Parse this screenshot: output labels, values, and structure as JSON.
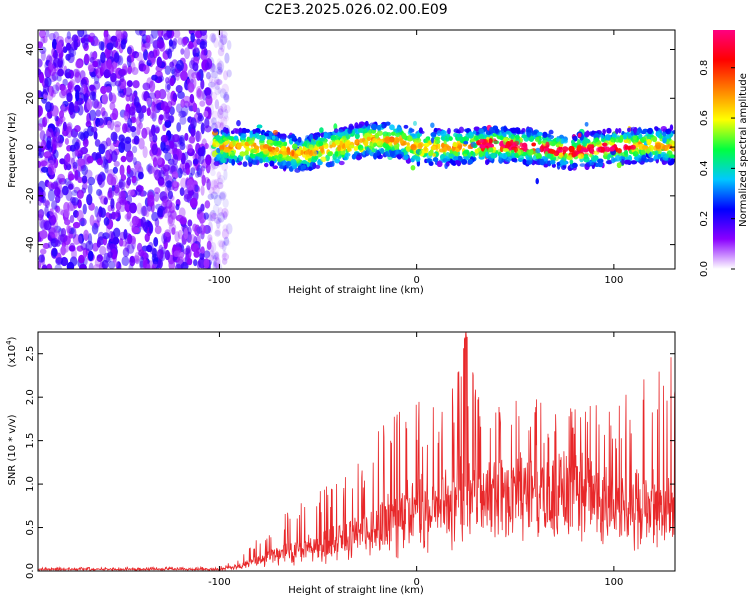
{
  "title": "C2E3.2025.026.02.00.E09",
  "chart_data": [
    {
      "type": "heatmap",
      "title": "C2E3.2025.026.02.00.E09",
      "xlabel": "Height of straight line (km)",
      "ylabel": "Frequency (Hz)",
      "xlim": [
        -192,
        131
      ],
      "ylim": [
        -50,
        48
      ],
      "x_ticks": [
        -100,
        0,
        100
      ],
      "y_ticks": [
        -40,
        -20,
        0,
        20,
        40
      ],
      "colorbar": {
        "label": "Normalized spectral amplitude",
        "range": [
          0,
          0.95
        ],
        "ticks": [
          "0.0",
          "0.2",
          "0.4",
          "0.6",
          "0.8"
        ],
        "colormap": [
          "#ffffff",
          "#8a00ff",
          "#0000ff",
          "#00c8ff",
          "#00ff40",
          "#ffff00",
          "#ff8000",
          "#ff0000",
          "#ff0080"
        ]
      },
      "description_features": {
        "noise_region_x": [
          -192,
          -95
        ],
        "signal_band_x": [
          -103,
          131
        ],
        "signal_center_frequency": [
          [
            -100,
            0
          ],
          [
            -80,
            0
          ],
          [
            -60,
            -3
          ],
          [
            -40,
            0
          ],
          [
            -25,
            3
          ],
          [
            -10,
            3
          ],
          [
            0,
            0
          ],
          [
            20,
            0
          ],
          [
            40,
            1
          ],
          [
            60,
            0
          ],
          [
            80,
            -2
          ],
          [
            100,
            0
          ],
          [
            120,
            1
          ],
          [
            131,
            0
          ]
        ]
      }
    },
    {
      "type": "line",
      "xlabel": "Height of straight line (km)",
      "ylabel": "SNR (10 * v/v)",
      "y_multiplier": "(x10^4)",
      "xlim": [
        -192,
        131
      ],
      "ylim": [
        0,
        2.75
      ],
      "x_ticks": [
        -100,
        0,
        100
      ],
      "y_ticks": [
        0.0,
        0.5,
        1.0,
        1.5,
        2.0,
        2.5
      ],
      "color": "#e8282a",
      "envelope": {
        "x": [
          -192,
          -100,
          -90,
          -80,
          -70,
          -60,
          -50,
          -40,
          -30,
          -20,
          -10,
          0,
          10,
          20,
          25,
          30,
          40,
          50,
          60,
          70,
          80,
          90,
          100,
          110,
          120,
          131
        ],
        "base": [
          0.02,
          0.02,
          0.05,
          0.1,
          0.15,
          0.18,
          0.2,
          0.25,
          0.3,
          0.35,
          0.45,
          0.55,
          0.6,
          0.65,
          0.7,
          0.75,
          0.8,
          0.9,
          0.95,
          1.0,
          0.95,
          0.85,
          0.75,
          0.6,
          0.55,
          0.5
        ],
        "peak": [
          0.04,
          0.05,
          0.15,
          0.4,
          0.6,
          0.8,
          0.9,
          1.1,
          1.3,
          1.6,
          1.9,
          2.0,
          2.0,
          2.2,
          2.75,
          2.3,
          2.1,
          2.0,
          2.0,
          1.8,
          1.9,
          2.0,
          1.8,
          2.2,
          2.55,
          2.45
        ]
      }
    }
  ]
}
